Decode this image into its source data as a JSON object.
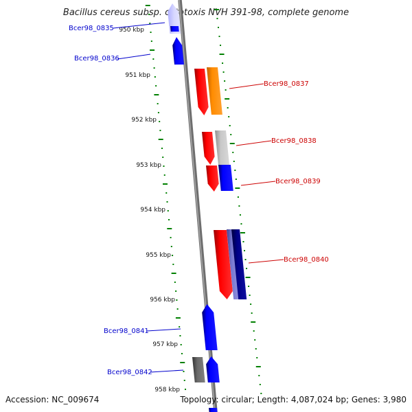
{
  "title": "Bacillus cereus subsp. cytotoxis NVH 391-98, complete genome",
  "footer": {
    "accession": "Accession: NC_009674",
    "summary": "Topology: circular; Length: 4,087,024 bp; Genes: 3,980"
  },
  "ticks": [
    "950 kbp",
    "951 kbp",
    "952 kbp",
    "953 kbp",
    "954 kbp",
    "955 kbp",
    "956 kbp",
    "957 kbp",
    "958 kbp"
  ],
  "gene_labels": {
    "left": [
      "Bcer98_0835",
      "Bcer98_0836",
      "Bcer98_0841",
      "Bcer98_0842"
    ],
    "right": [
      "Bcer98_0837",
      "Bcer98_0838",
      "Bcer98_0839",
      "Bcer98_0840"
    ]
  },
  "colors": {
    "minus_strand": "#0000ff",
    "plus_strand": "#ff0000",
    "orange": "#ff8c00",
    "grey": "#c0c0c0",
    "navy": "#000080",
    "slate": "#7070c0",
    "dark_grey": "#666666",
    "tick_green": "#008000",
    "backbone": "#808080"
  }
}
